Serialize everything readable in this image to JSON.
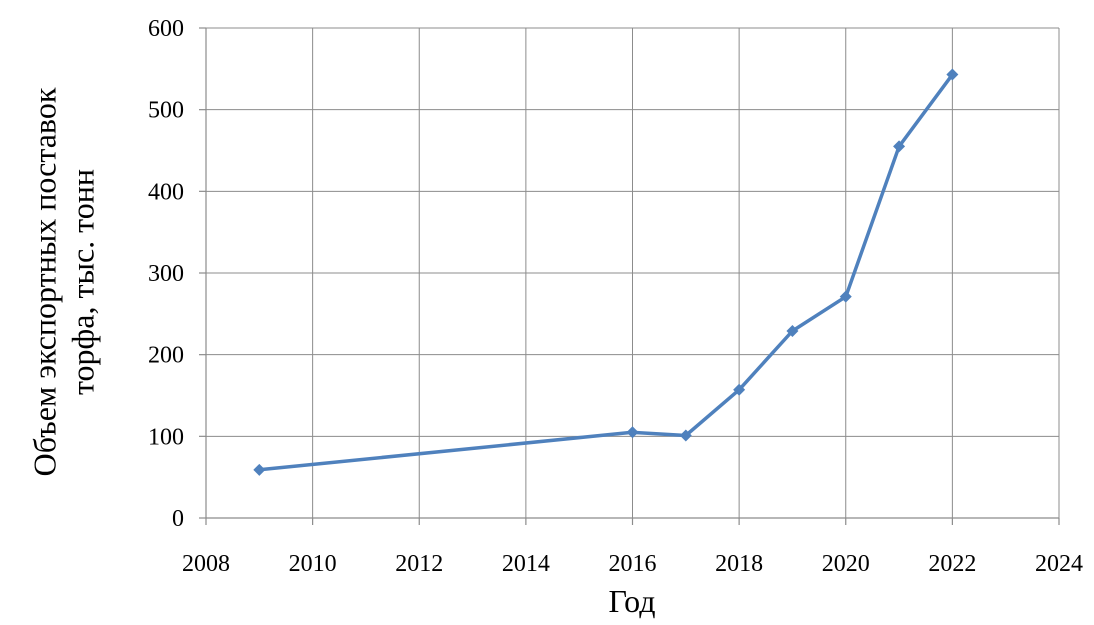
{
  "chart_data": {
    "type": "line",
    "title": "",
    "xlabel": "Год",
    "ylabel_line1": "Объем экспортных поставок",
    "ylabel_line2": "торфа, тыс. тонн",
    "xlim": [
      2008,
      2024
    ],
    "ylim": [
      0,
      600
    ],
    "x_ticks": [
      "2008",
      "2010",
      "2012",
      "2014",
      "2016",
      "2018",
      "2020",
      "2022",
      "2024"
    ],
    "y_ticks": [
      "0",
      "100",
      "200",
      "300",
      "400",
      "500",
      "600"
    ],
    "grid": true,
    "series": [
      {
        "color": "#4f81bd",
        "marker": "diamond",
        "x": [
          2009,
          2016,
          2017,
          2018,
          2019,
          2020,
          2021,
          2022
        ],
        "y": [
          59,
          105,
          101,
          157,
          229,
          271,
          455,
          543
        ]
      }
    ]
  }
}
